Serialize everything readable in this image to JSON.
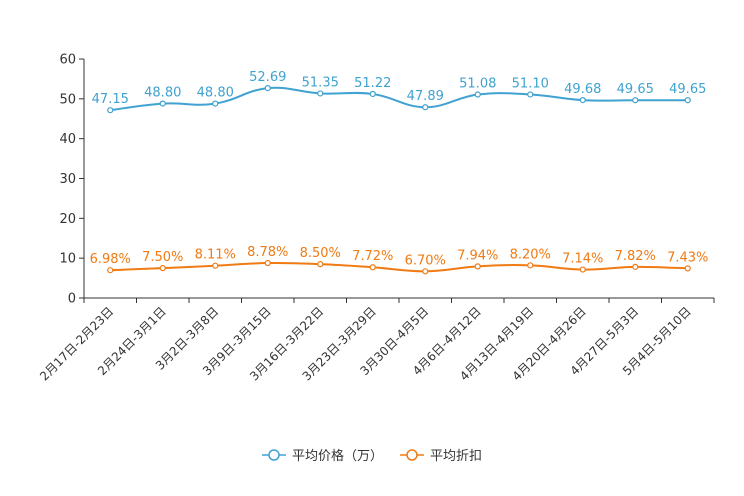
{
  "chart_data": {
    "type": "line",
    "title": "",
    "xlabel": "",
    "ylabel": "",
    "ylim": [
      0,
      60
    ],
    "yticks": [
      0,
      10,
      20,
      30,
      40,
      50,
      60
    ],
    "categories": [
      "2月17日-2月23日",
      "2月24日-3月1日",
      "3月2日-3月8日",
      "3月9日-3月15日",
      "3月16日-3月22日",
      "3月23日-3月29日",
      "3月30日-4月5日",
      "4月6日-4月12日",
      "4月13日-4月19日",
      "4月20日-4月26日",
      "4月27日-5月3日",
      "5月4日-5月10日"
    ],
    "series": [
      {
        "name": "平均价格（万）",
        "color": "#3fa2d0",
        "values": [
          47.15,
          48.8,
          48.8,
          52.69,
          51.35,
          51.22,
          47.89,
          51.08,
          51.1,
          49.68,
          49.65,
          49.65
        ],
        "labels": [
          "47.15",
          "48.80",
          "48.80",
          "52.69",
          "51.35",
          "51.22",
          "47.89",
          "51.08",
          "51.10",
          "49.68",
          "49.65",
          "49.65"
        ]
      },
      {
        "name": "平均折扣",
        "color": "#f07a14",
        "values": [
          6.98,
          7.5,
          8.11,
          8.78,
          8.5,
          7.72,
          6.7,
          7.94,
          8.2,
          7.14,
          7.82,
          7.43
        ],
        "labels": [
          "6.98%",
          "7.50%",
          "8.11%",
          "8.78%",
          "8.50%",
          "7.72%",
          "6.70%",
          "7.94%",
          "8.20%",
          "7.14%",
          "7.82%",
          "7.43%"
        ]
      }
    ],
    "legend": "bottom-center"
  }
}
